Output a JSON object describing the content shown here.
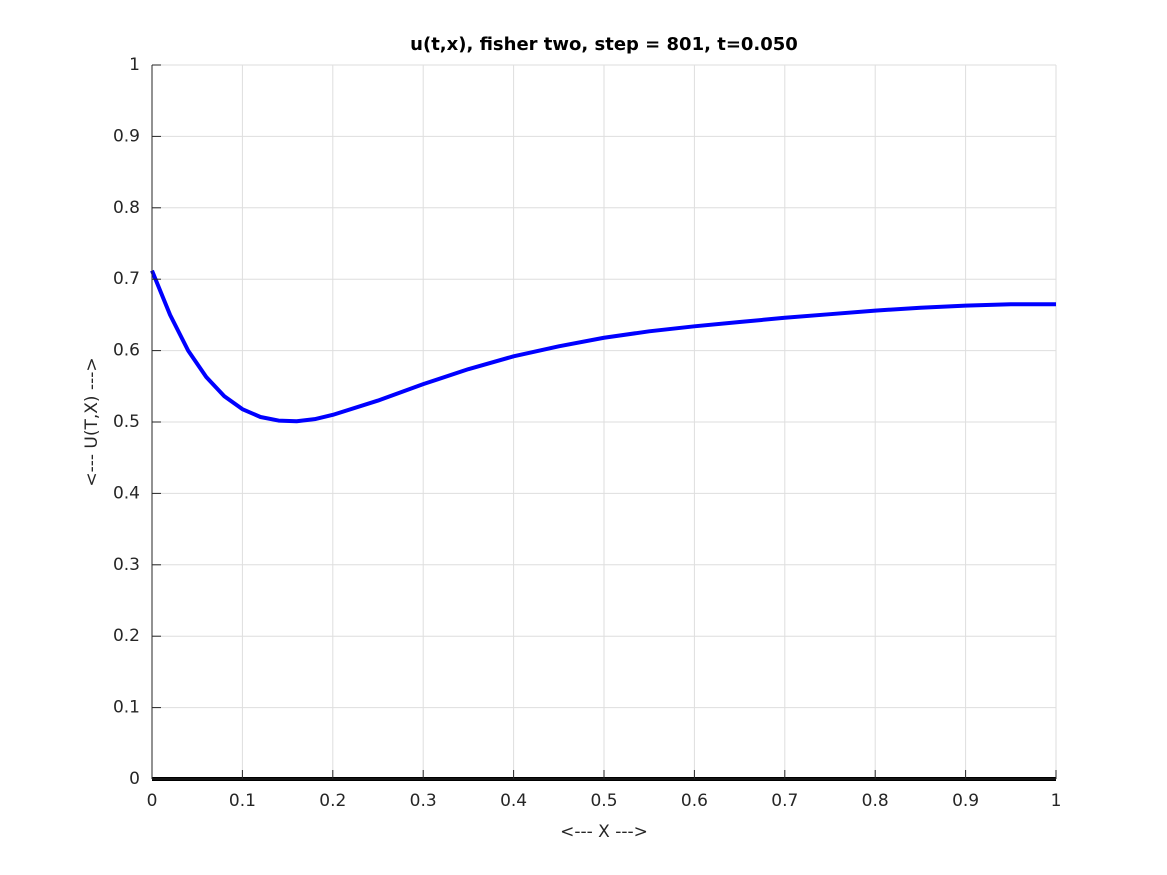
{
  "chart_data": {
    "type": "line",
    "title": "u(t,x), fisher two, step = 801, t=0.050",
    "x_label": "<--- X --->",
    "y_label": "<--- U(T,X) --->",
    "xlim": [
      0,
      1
    ],
    "ylim": [
      0,
      1
    ],
    "xticks": [
      0,
      0.1,
      0.2,
      0.3,
      0.4,
      0.5,
      0.6,
      0.7,
      0.8,
      0.9,
      1
    ],
    "yticks": [
      0,
      0.1,
      0.2,
      0.3,
      0.4,
      0.5,
      0.6,
      0.7,
      0.8,
      0.9,
      1
    ],
    "grid": true,
    "series": [
      {
        "color": "#0000ff",
        "x": [
          0,
          0.02,
          0.04,
          0.06,
          0.08,
          0.1,
          0.12,
          0.14,
          0.16,
          0.18,
          0.2,
          0.25,
          0.3,
          0.35,
          0.4,
          0.45,
          0.5,
          0.55,
          0.6,
          0.65,
          0.7,
          0.75,
          0.8,
          0.85,
          0.9,
          0.95,
          1
        ],
        "values": [
          0.712,
          0.65,
          0.6,
          0.563,
          0.536,
          0.518,
          0.507,
          0.502,
          0.501,
          0.504,
          0.51,
          0.53,
          0.553,
          0.574,
          0.592,
          0.606,
          0.618,
          0.627,
          0.634,
          0.64,
          0.646,
          0.651,
          0.656,
          0.66,
          0.663,
          0.665,
          0.665
        ]
      },
      {
        "color": "#000000",
        "x": [
          0,
          1
        ],
        "values": [
          0,
          0
        ]
      }
    ]
  }
}
